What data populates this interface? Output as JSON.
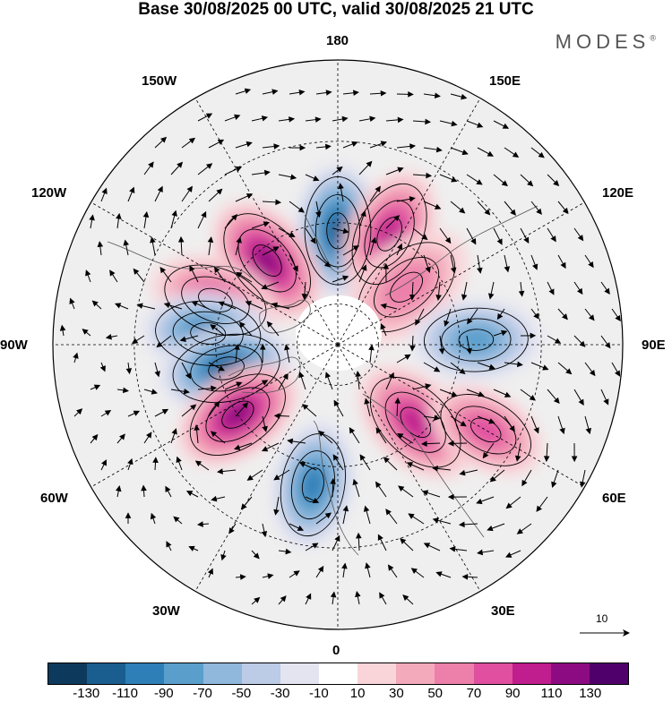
{
  "title": "Base 30/08/2025 00 UTC, valid 30/08/2025 21 UTC",
  "brand": {
    "name": "MODES",
    "mark": "®"
  },
  "longitude_labels": {
    "lon_180": "180",
    "lon_150e": "150E",
    "lon_120e": "120E",
    "lon_90e": "90E",
    "lon_60e": "60E",
    "lon_30e": "30E",
    "lon_0": "0",
    "lon_30w": "30W",
    "lon_60w": "60W",
    "lon_90w": "90W",
    "lon_120w": "120W",
    "lon_150w": "150W"
  },
  "reference_vector": {
    "label": "10"
  },
  "colorbar": {
    "colors": [
      "#0d3a5c",
      "#1a5d8f",
      "#2e7fb8",
      "#5a9fcc",
      "#8fb8dc",
      "#bccbe6",
      "#e4e4f1",
      "#ffffff",
      "#f9d5d9",
      "#f3aabb",
      "#ec80aa",
      "#e04fa0",
      "#c01d8e",
      "#8d0b82",
      "#4f006b"
    ],
    "ticks": [
      "-130",
      "-110",
      "-90",
      "-70",
      "-50",
      "-30",
      "-10",
      "10",
      "30",
      "50",
      "70",
      "90",
      "110",
      "130"
    ]
  },
  "anomaly_field": {
    "units": "none shown",
    "centers": [
      {
        "name": "neg-180",
        "lon": 180,
        "lat": 62,
        "value": -110
      },
      {
        "name": "pos-160e",
        "lon": 155,
        "lat": 60,
        "value": 90
      },
      {
        "name": "pos-130e",
        "lon": 130,
        "lat": 68,
        "value": 50
      },
      {
        "name": "pos-135w",
        "lon": -140,
        "lat": 63,
        "value": 110
      },
      {
        "name": "pos-110w",
        "lon": -110,
        "lat": 58,
        "value": 70
      },
      {
        "name": "neg-95w",
        "lon": -95,
        "lat": 58,
        "value": -90
      },
      {
        "name": "neg-80w",
        "lon": -78,
        "lat": 62,
        "value": -110
      },
      {
        "name": "pos-55w",
        "lon": -55,
        "lat": 60,
        "value": 110
      },
      {
        "name": "neg-10e",
        "lon": -10,
        "lat": 55,
        "value": -90
      },
      {
        "name": "pos-45e",
        "lon": 45,
        "lat": 63,
        "value": 90
      },
      {
        "name": "pos-65e",
        "lon": 60,
        "lat": 48,
        "value": 70
      },
      {
        "name": "neg-90e",
        "lon": 92,
        "lat": 56,
        "value": -70
      }
    ]
  }
}
